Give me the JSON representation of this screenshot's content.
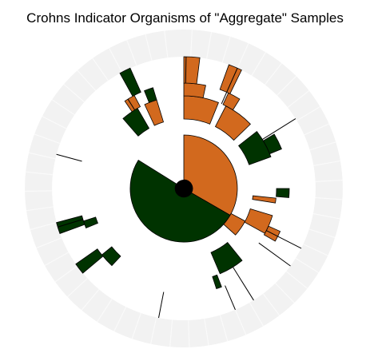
{
  "chart_data": {
    "type": "sunburst",
    "title": "Crohns Indicator Organisms of \"Aggregate\" Samples",
    "start_angle_deg": 0,
    "direction": "clockwise",
    "colors": {
      "crohns_enriched": "#d2691e",
      "control_enriched": "#003300",
      "background_ring": "#f2f2f2",
      "outline": "#000000"
    },
    "rings": [
      {
        "level": 1,
        "segments": [
          {
            "start": 0,
            "end": 120,
            "group": "crohns_enriched"
          },
          {
            "start": 120,
            "end": 302,
            "group": "control_enriched"
          }
        ]
      },
      {
        "level": 2,
        "segments": [
          {
            "start": 118,
            "end": 132,
            "group": "crohns_enriched"
          }
        ]
      },
      {
        "level": 3,
        "segments": [
          {
            "start": 0,
            "end": 22,
            "group": "crohns_enriched"
          },
          {
            "start": 27,
            "end": 46,
            "group": "crohns_enriched"
          },
          {
            "start": 52,
            "end": 70,
            "group": "control_enriched"
          },
          {
            "start": 96,
            "end": 99,
            "group": "crohns_enriched"
          },
          {
            "start": 107,
            "end": 119,
            "group": "crohns_enriched"
          },
          {
            "start": 141,
            "end": 157,
            "group": "control_enriched"
          },
          {
            "start": 335,
            "end": 343,
            "group": "crohns_enriched"
          },
          {
            "start": 319,
            "end": 330,
            "group": "control_enriched"
          }
        ]
      },
      {
        "level": 4,
        "segments": [
          {
            "start": 0,
            "end": 12,
            "group": "crohns_enriched"
          },
          {
            "start": 25,
            "end": 32,
            "group": "crohns_enriched"
          },
          {
            "start": 59,
            "end": 68,
            "group": "control_enriched"
          },
          {
            "start": 90,
            "end": 95,
            "group": "control_enriched"
          },
          {
            "start": 114,
            "end": 120,
            "group": "crohns_enriched"
          },
          {
            "start": 159,
            "end": 162,
            "group": "control_enriched"
          },
          {
            "start": 223,
            "end": 231,
            "group": "control_enriched"
          },
          {
            "start": 248,
            "end": 252,
            "group": "control_enriched"
          },
          {
            "start": 326,
            "end": 332,
            "group": "crohns_enriched"
          },
          {
            "start": 338,
            "end": 343,
            "group": "control_enriched"
          }
        ]
      },
      {
        "level": 5,
        "segments": [
          {
            "start": 0,
            "end": 7,
            "group": "crohns_enriched"
          },
          {
            "start": 20,
            "end": 26,
            "group": "crohns_enriched"
          },
          {
            "start": 230,
            "end": 235,
            "group": "control_enriched"
          },
          {
            "start": 250,
            "end": 255,
            "group": "control_enriched"
          },
          {
            "start": 331,
            "end": 336,
            "group": "control_enriched"
          }
        ]
      }
    ],
    "ticks": [
      {
        "angle": 1,
        "from_level": 5,
        "to_level": 6
      },
      {
        "angle": 24,
        "from_level": 4,
        "to_level": 6
      },
      {
        "angle": 58,
        "from_level": 4,
        "to_level": 6
      },
      {
        "angle": 117,
        "from_level": 4,
        "to_level": 6
      },
      {
        "angle": 126,
        "from_level": 4,
        "to_level": 6
      },
      {
        "angle": 148,
        "from_level": 4,
        "to_level": 6
      },
      {
        "angle": 157,
        "from_level": 5,
        "to_level": 6
      },
      {
        "angle": 191,
        "from_level": 5,
        "to_level": 6
      },
      {
        "angle": 253,
        "from_level": 5,
        "to_level": 6
      },
      {
        "angle": 285,
        "from_level": 5,
        "to_level": 6
      },
      {
        "angle": 328,
        "from_level": 4,
        "to_level": 5
      }
    ]
  }
}
